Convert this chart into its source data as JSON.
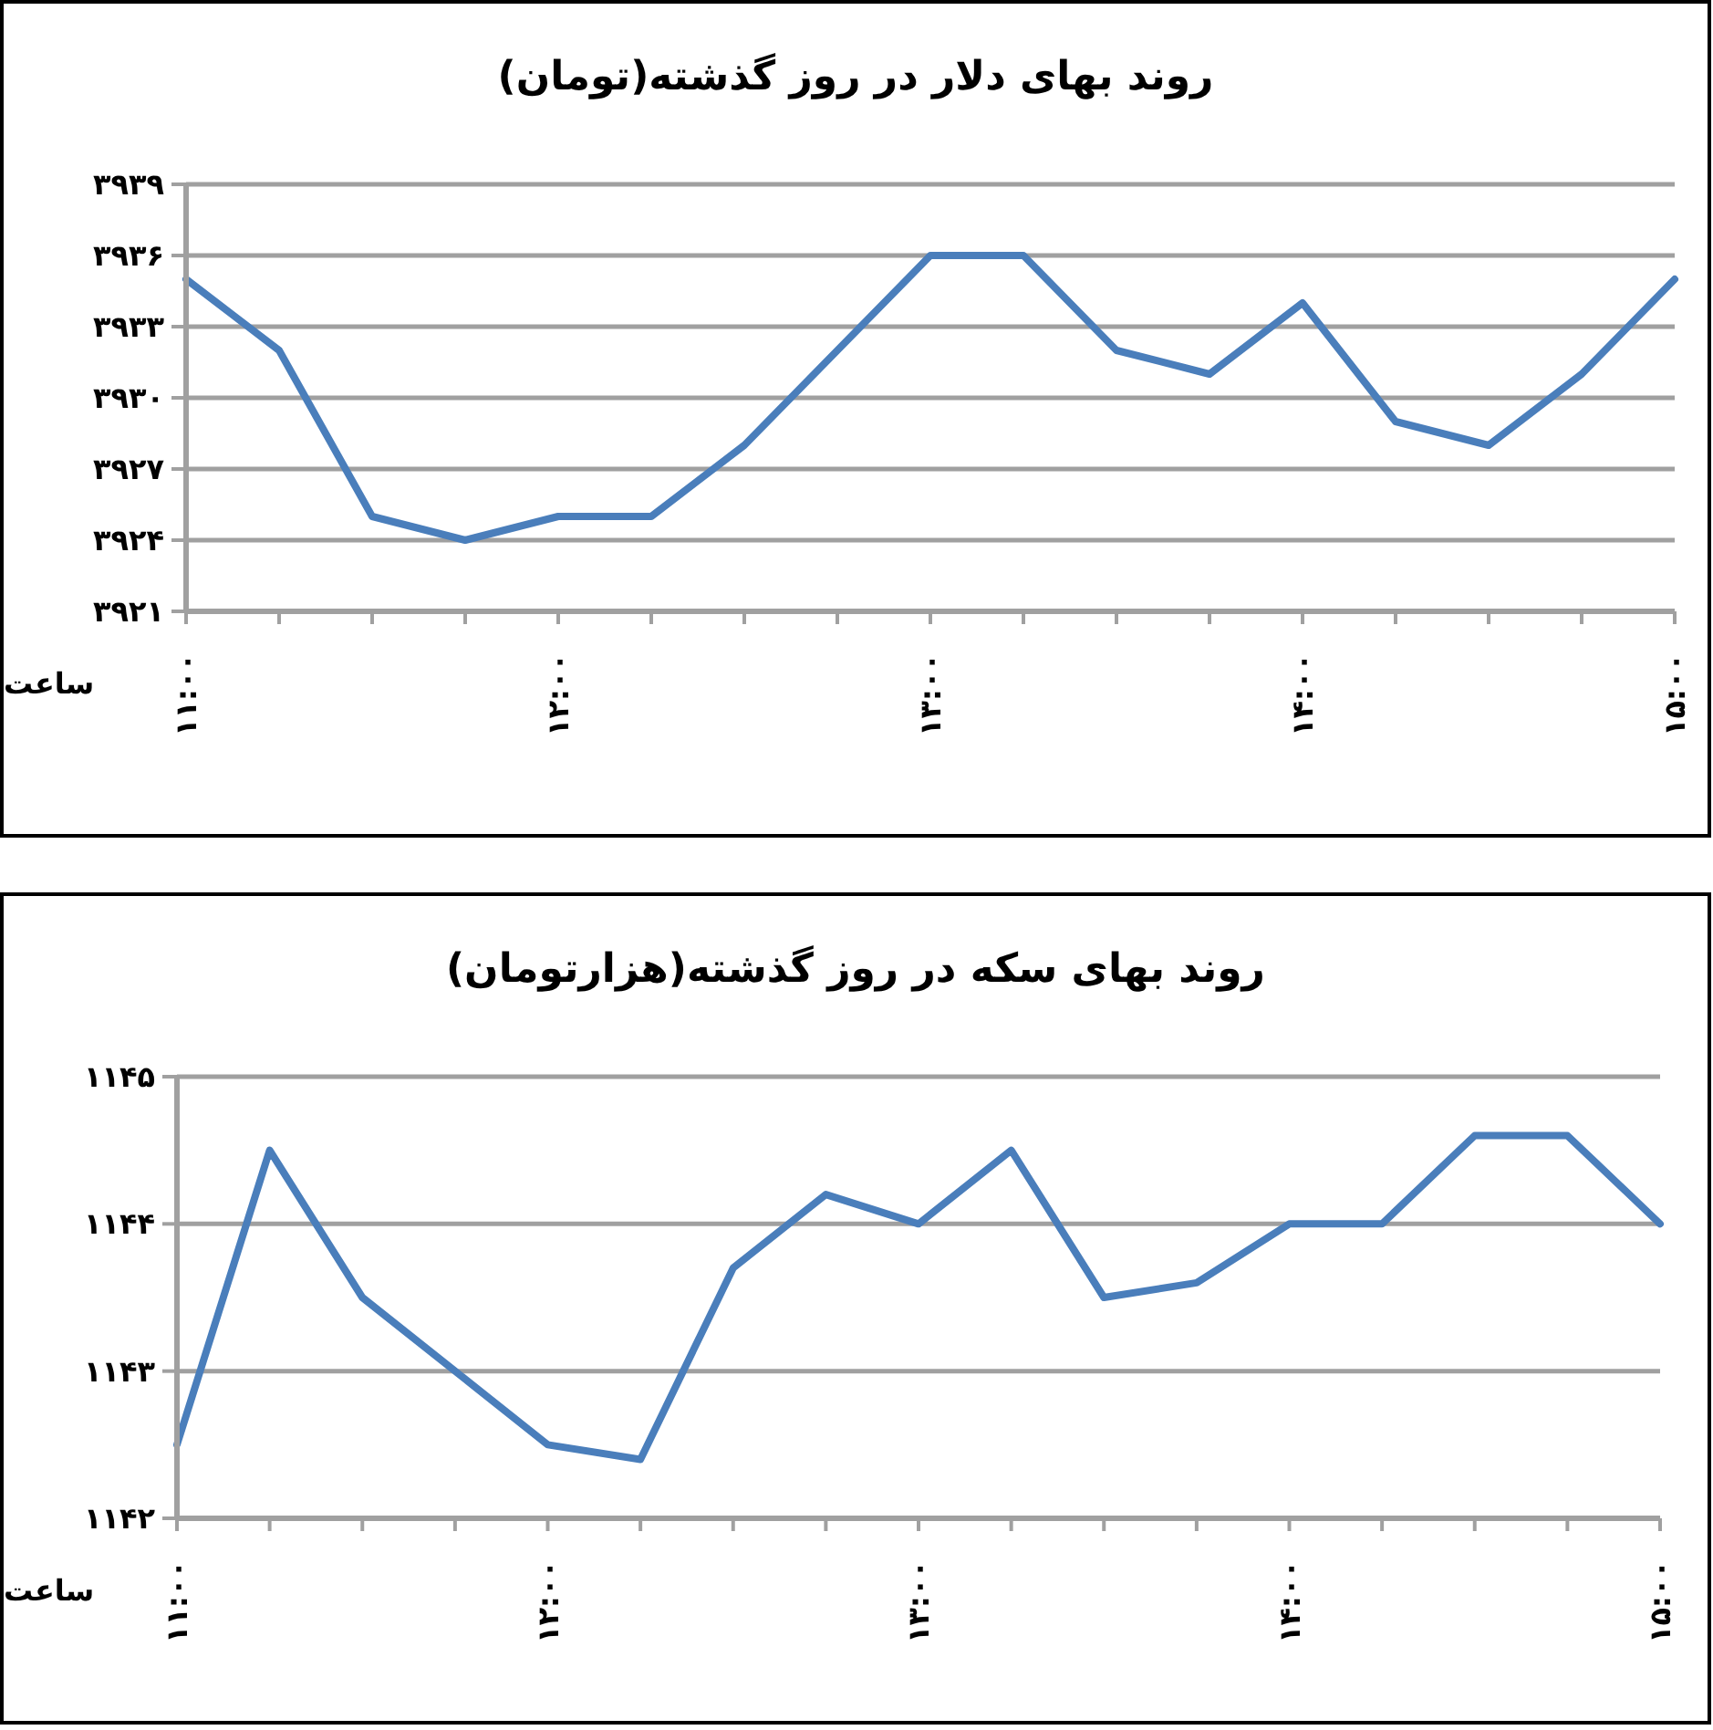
{
  "chart_data": [
    {
      "type": "line",
      "title": "روند بهای دلار در روز گذشته(تومان)",
      "xlabel": "ساعت",
      "categories": [
        "۱۱:۰۰",
        null,
        null,
        null,
        "۱۲:۰۰",
        null,
        null,
        null,
        "۱۳:۰۰",
        null,
        null,
        null,
        "۱۴:۰۰",
        null,
        null,
        null,
        "۱۵:۰۰"
      ],
      "series": [
        {
          "color": "#4a7ebb",
          "values": [
            3935,
            3932,
            3925,
            3924,
            3925,
            3925,
            3928,
            3932,
            3936,
            3936,
            3932,
            3931,
            3934,
            3929,
            3928,
            3931,
            3935
          ]
        }
      ],
      "ylim": [
        3921,
        3939
      ],
      "yticks": [
        {
          "value": 3921,
          "label": "۳۹۲۱"
        },
        {
          "value": 3924,
          "label": "۳۹۲۴"
        },
        {
          "value": 3927,
          "label": "۳۹۲۷"
        },
        {
          "value": 3930,
          "label": "۳۹۳۰"
        },
        {
          "value": 3933,
          "label": "۳۹۳۳"
        },
        {
          "value": 3936,
          "label": "۳۹۳۶"
        },
        {
          "value": 3939,
          "label": "۳۹۳۹"
        }
      ],
      "grid": "y",
      "legend": false,
      "marker": "none",
      "line_style": "solid"
    },
    {
      "type": "line",
      "title": "روند بهای سکه در روز گذشته(هزارتومان)",
      "xlabel": "ساعت",
      "categories": [
        "۱۱:۰۰",
        null,
        null,
        null,
        "۱۲:۰۰",
        null,
        null,
        null,
        "۱۳:۰۰",
        null,
        null,
        null,
        "۱۴:۰۰",
        null,
        null,
        null,
        "۱۵:۰۰"
      ],
      "series": [
        {
          "color": "#4a7ebb",
          "values": [
            1142.5,
            1144.5,
            1143.5,
            1143.0,
            1142.5,
            1142.4,
            1143.7,
            1144.2,
            1144.0,
            1144.5,
            1143.5,
            1143.6,
            1144.0,
            1144.0,
            1144.6,
            1144.6,
            1144.0
          ]
        }
      ],
      "ylim": [
        1142,
        1145
      ],
      "yticks": [
        {
          "value": 1142,
          "label": "۱۱۴۲"
        },
        {
          "value": 1143,
          "label": "۱۱۴۳"
        },
        {
          "value": 1144,
          "label": "۱۱۴۴"
        },
        {
          "value": 1145,
          "label": "۱۱۴۵"
        }
      ],
      "grid": "y",
      "legend": false,
      "marker": "none",
      "line_style": "solid"
    }
  ]
}
